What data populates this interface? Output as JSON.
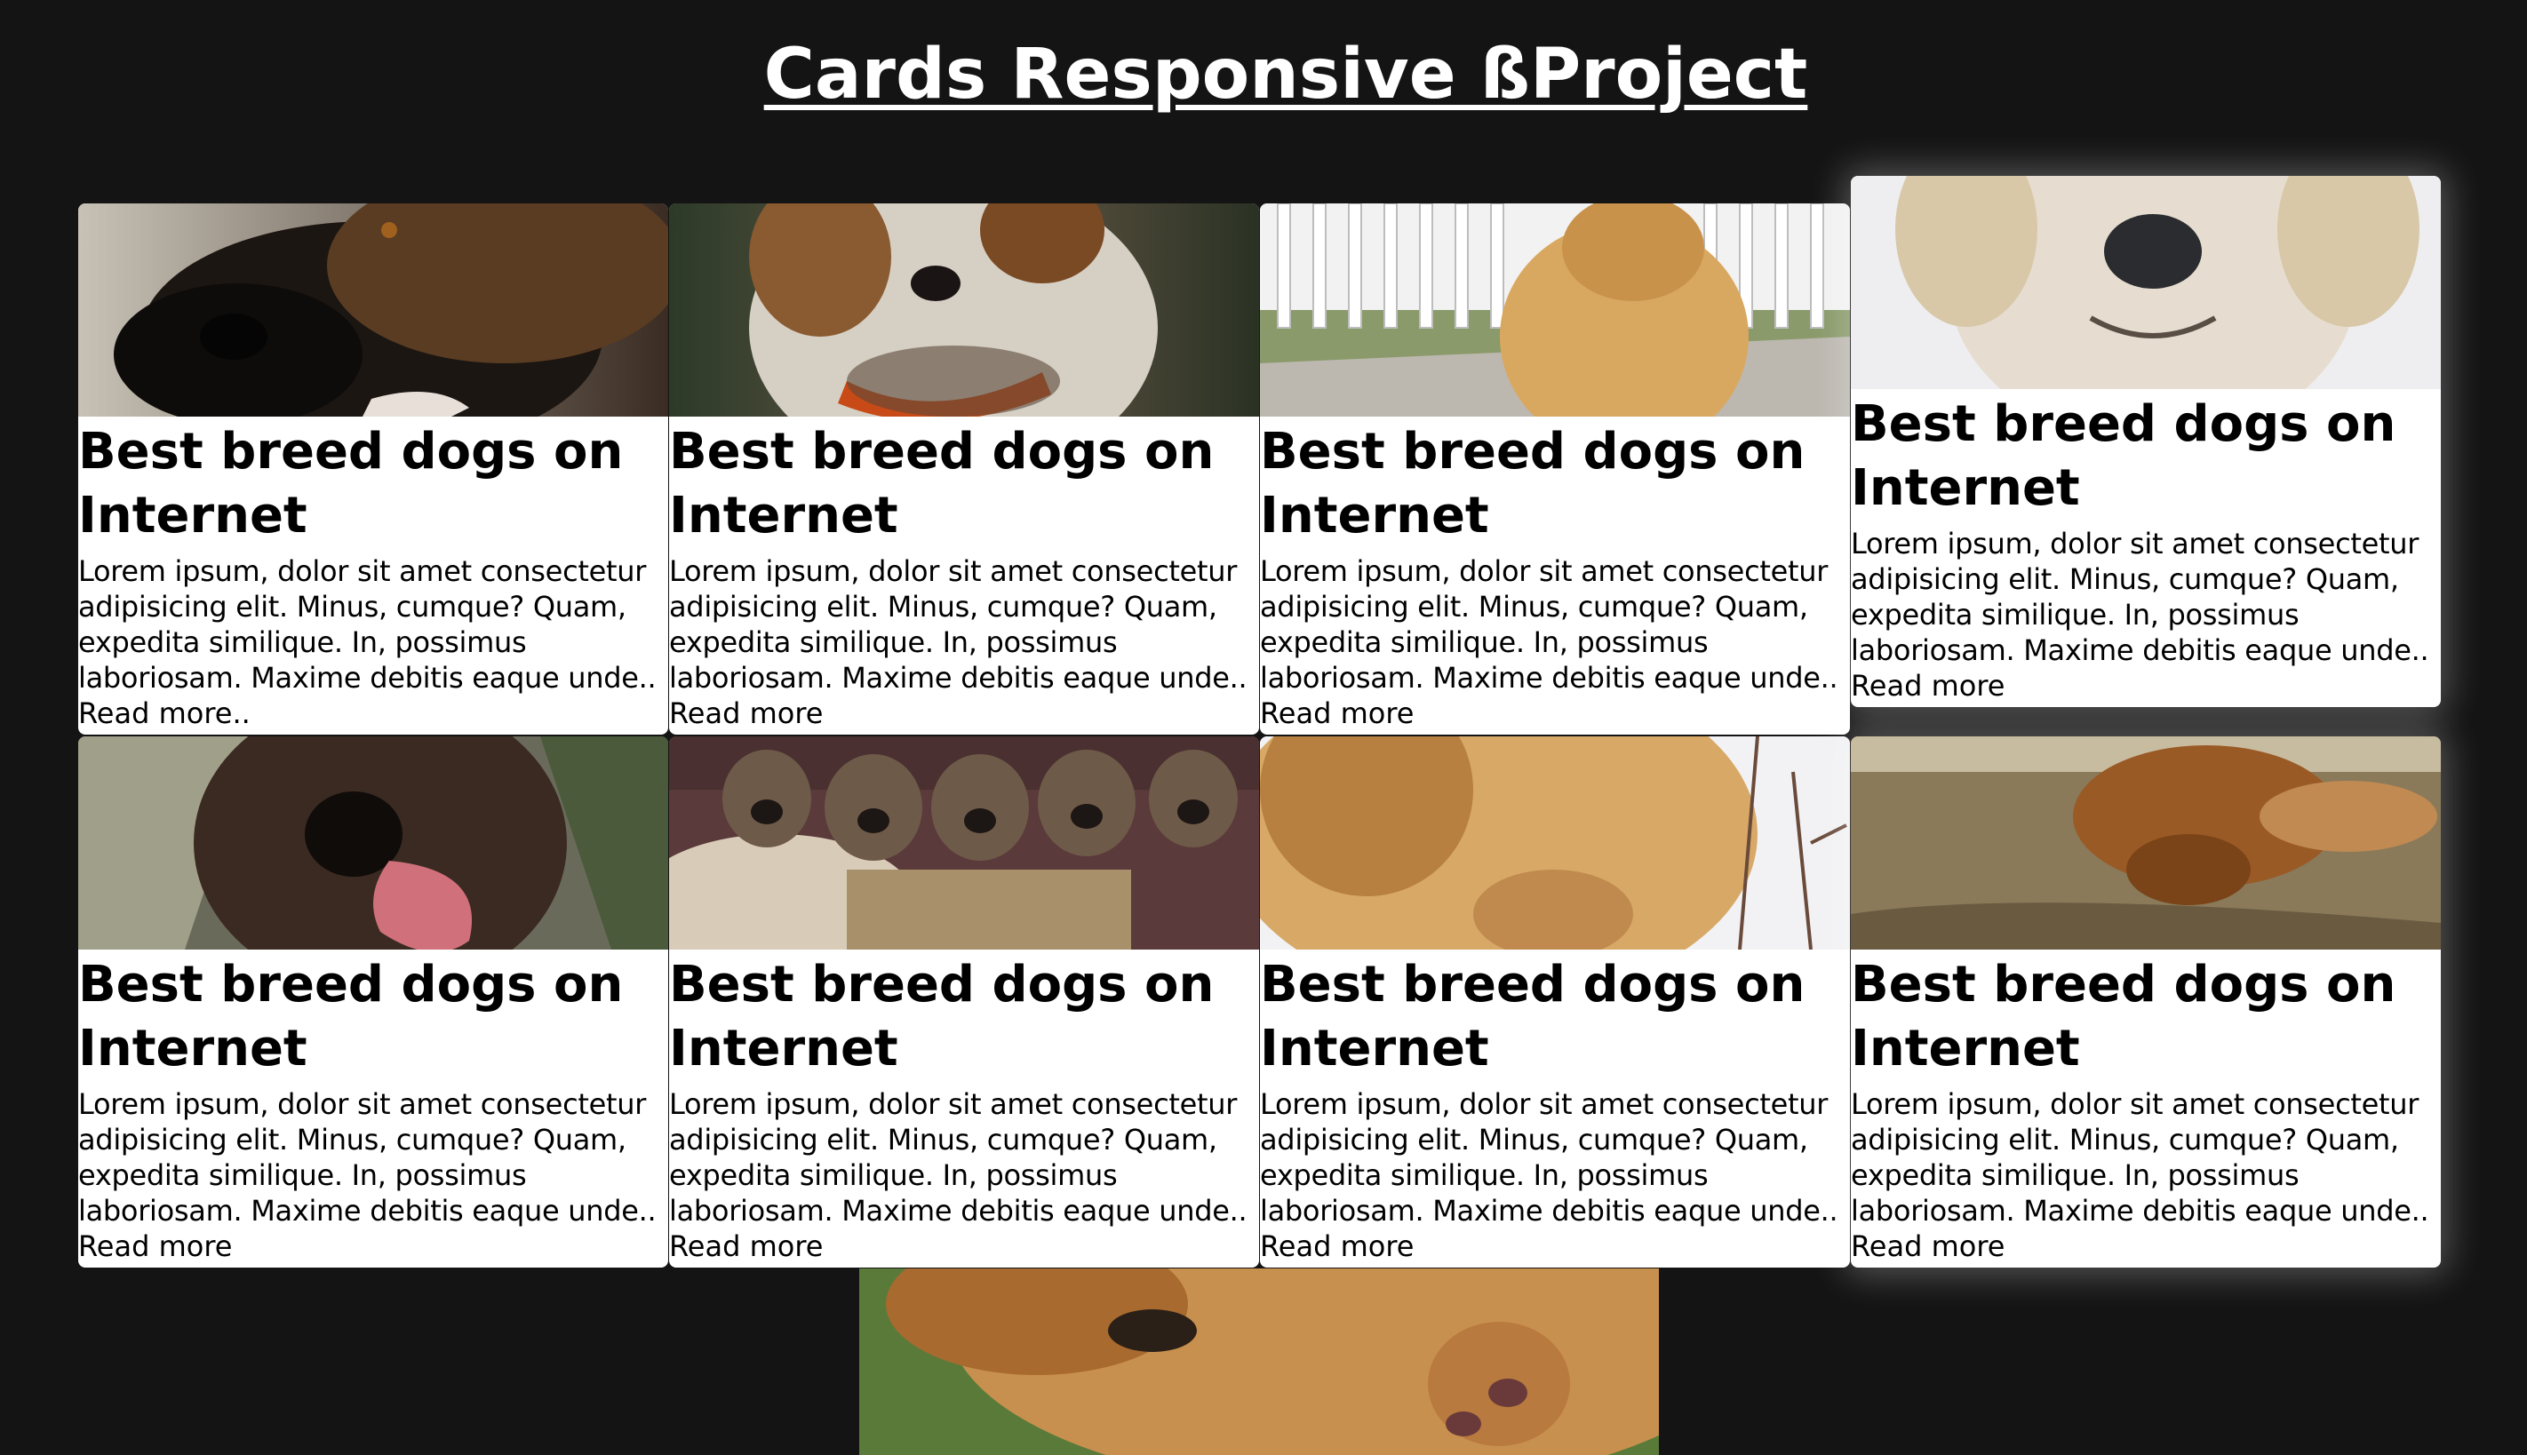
{
  "page": {
    "title": "Cards Responsive ßProject"
  },
  "cards": [
    {
      "title": "Best breed dogs on Internet",
      "text": "Lorem ipsum, dolor sit amet consectetur adipisicing elit. Minus, cumque? Quam, expedita similique. In, possimus laboriosam. Maxime debitis eaque unde..",
      "link": "Read more..",
      "image": "german-shepherd-photo"
    },
    {
      "title": "Best breed dogs on Internet",
      "text": "Lorem ipsum, dolor sit amet consectetur adipisicing elit. Minus, cumque? Quam, expedita similique. In, possimus laboriosam. Maxime debitis eaque unde..",
      "link": "Read more",
      "image": "saint-bernard-photo"
    },
    {
      "title": "Best breed dogs on Internet",
      "text": "Lorem ipsum, dolor sit amet consectetur adipisicing elit. Minus, cumque? Quam, expedita similique. In, possimus laboriosam. Maxime debitis eaque unde..",
      "link": "Read more",
      "image": "golden-retriever-fence-photo"
    },
    {
      "title": "Best breed dogs on Internet",
      "text": "Lorem ipsum, dolor sit amet consectetur adipisicing elit. Minus, cumque? Quam, expedita similique. In, possimus laboriosam. Maxime debitis eaque unde..",
      "link": "Read more",
      "image": "white-dog-snow-photo"
    },
    {
      "title": "Best breed dogs on Internet",
      "text": "Lorem ipsum, dolor sit amet consectetur adipisicing elit. Minus, cumque? Quam, expedita similique. In, possimus laboriosam. Maxime debitis eaque unde..",
      "link": "Read more",
      "image": "brown-dog-tongue-photo"
    },
    {
      "title": "Best breed dogs on Internet",
      "text": "Lorem ipsum, dolor sit amet consectetur adipisicing elit. Minus, cumque? Quam, expedita similique. In, possimus laboriosam. Maxime debitis eaque unde..",
      "link": "Read more",
      "image": "puppies-basket-photo"
    },
    {
      "title": "Best breed dogs on Internet",
      "text": "Lorem ipsum, dolor sit amet consectetur adipisicing elit. Minus, cumque? Quam, expedita similique. In, possimus laboriosam. Maxime debitis eaque unde..",
      "link": "Read more",
      "image": "golden-dog-sniffing-photo"
    },
    {
      "title": "Best breed dogs on Internet",
      "text": "Lorem ipsum, dolor sit amet consectetur adipisicing elit. Minus, cumque? Quam, expedita similique. In, possimus laboriosam. Maxime debitis eaque unde..",
      "link": "Read more",
      "image": "dog-rolling-grass-photo"
    }
  ],
  "colors": {
    "background": "#141414",
    "card": "#ffffff",
    "title": "#ffffff"
  }
}
